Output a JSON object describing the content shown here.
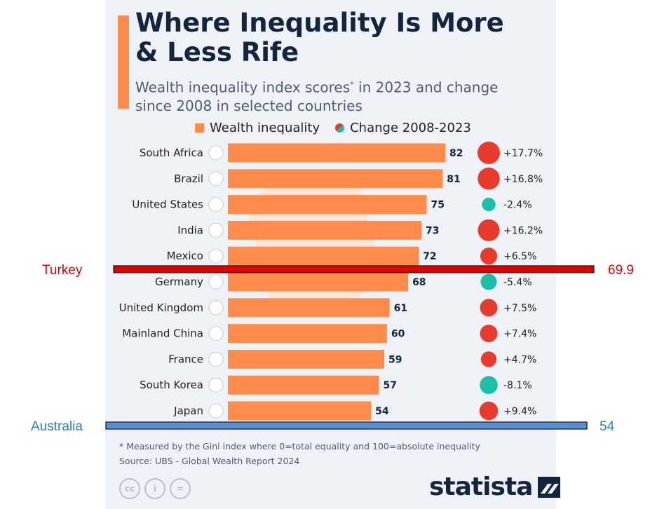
{
  "title": "Where Inequality Is More & Less Rife",
  "subtitle": "Wealth inequality index scores",
  "subtitle_mark": "*",
  "subtitle_rest": " in 2023 and change since 2008 in selected countries",
  "legend": {
    "bar_label": "Wealth inequality",
    "dot_label": "Change 2008-2023"
  },
  "colors": {
    "bar": "#ff8c4b",
    "increase": "#e83a2d",
    "decrease": "#1bbfa7",
    "turkey": "#e00000",
    "australia": "#5b8fd8"
  },
  "chart_data": {
    "type": "bar",
    "orientation": "horizontal",
    "categories": [
      "South Africa",
      "Brazil",
      "United States",
      "India",
      "Mexico",
      "Germany",
      "United Kingdom",
      "Mainland China",
      "France",
      "South Korea",
      "Japan"
    ],
    "values": [
      82,
      81,
      75,
      73,
      72,
      68,
      61,
      60,
      59,
      57,
      54
    ],
    "value_labels": [
      "82",
      "81",
      "75",
      "73",
      "72",
      "68",
      "61",
      "60",
      "59",
      "57",
      "54"
    ],
    "change_values": [
      17.7,
      16.8,
      -2.4,
      16.2,
      6.5,
      -5.4,
      7.5,
      7.4,
      4.7,
      -8.1,
      9.4
    ],
    "change_labels": [
      "+17.7%",
      "+16.8%",
      "-2.4%",
      "+16.2%",
      "+6.5%",
      "-5.4%",
      "+7.5%",
      "+7.4%",
      "+4.7%",
      "-8.1%",
      "+9.4%"
    ],
    "overlays": [
      {
        "name": "Turkey",
        "value": 69.9,
        "value_label": "69.9"
      },
      {
        "name": "Australia",
        "value": 54,
        "value_label": "54"
      }
    ]
  },
  "footnote": "* Measured by the Gini index where 0=total equality and 100=absolute inequality",
  "source": "Source: UBS - Global Wealth Report 2024",
  "license_icons": [
    {
      "name": "cc-icon",
      "text": "cc"
    },
    {
      "name": "attribution-icon",
      "text": "i"
    },
    {
      "name": "no-derivatives-icon",
      "text": "="
    }
  ],
  "brand": "statista"
}
